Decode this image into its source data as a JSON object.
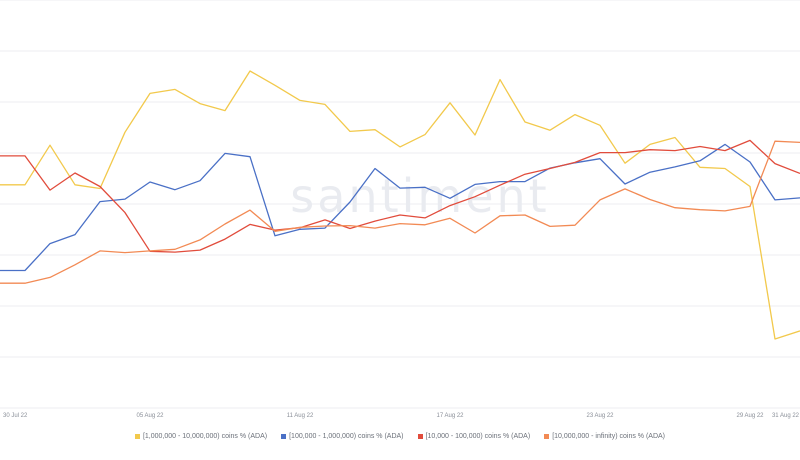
{
  "watermark": "santiment",
  "chart_data": {
    "type": "line",
    "x": [
      "30 Jul 22",
      "31 Jul 22",
      "01 Aug 22",
      "02 Aug 22",
      "03 Aug 22",
      "04 Aug 22",
      "05 Aug 22",
      "06 Aug 22",
      "07 Aug 22",
      "08 Aug 22",
      "09 Aug 22",
      "10 Aug 22",
      "11 Aug 22",
      "12 Aug 22",
      "13 Aug 22",
      "14 Aug 22",
      "15 Aug 22",
      "16 Aug 22",
      "17 Aug 22",
      "18 Aug 22",
      "19 Aug 22",
      "20 Aug 22",
      "21 Aug 22",
      "22 Aug 22",
      "23 Aug 22",
      "24 Aug 22",
      "25 Aug 22",
      "26 Aug 22",
      "27 Aug 22",
      "28 Aug 22",
      "29 Aug 22",
      "30 Aug 22",
      "31 Aug 22"
    ],
    "x_tick_labels": [
      "30 Jul 22",
      "05 Aug 22",
      "11 Aug 22",
      "17 Aug 22",
      "23 Aug 22",
      "29 Aug 22",
      "31 Aug 22"
    ],
    "ylim": [
      0,
      100
    ],
    "grid": true,
    "legend_position": "bottom",
    "series": [
      {
        "name": "[1,000,000 - 10,000,000) coins % (ADA)",
        "color": "#f2c94c",
        "values": [
          54.7,
          54.7,
          64.4,
          54.7,
          53.8,
          67.6,
          77.1,
          78.1,
          74.6,
          72.9,
          82.6,
          79.1,
          75.4,
          74.4,
          67.8,
          68.2,
          64.0,
          67.0,
          74.8,
          66.9,
          80.5,
          70.1,
          68.1,
          71.9,
          69.3,
          60.0,
          64.6,
          66.3,
          59.0,
          58.7,
          54.3,
          16.9,
          18.9
        ]
      },
      {
        "name": "[100,000 - 1,000,000) coins % (ADA)",
        "color": "#4a70c6",
        "values": [
          33.7,
          33.7,
          40.3,
          42.5,
          50.6,
          51.2,
          55.4,
          53.5,
          55.7,
          62.4,
          61.6,
          42.2,
          43.8,
          44.1,
          50.5,
          58.7,
          53.9,
          54.1,
          51.4,
          54.8,
          55.5,
          55.5,
          58.8,
          60.1,
          61.1,
          54.9,
          57.8,
          59.1,
          60.6,
          64.6,
          60.3,
          51.0,
          51.5
        ]
      },
      {
        "name": "[10,000 - 100,000) coins % (ADA)",
        "color": "#e14c3c",
        "values": [
          61.8,
          61.8,
          53.4,
          57.6,
          54.3,
          47.9,
          38.4,
          38.2,
          38.7,
          41.4,
          45.0,
          43.6,
          44.2,
          46.1,
          44.0,
          45.8,
          47.3,
          46.6,
          49.6,
          51.8,
          54.6,
          57.3,
          58.7,
          60.2,
          62.6,
          62.6,
          63.3,
          63.1,
          64.1,
          63.1,
          65.6,
          59.9,
          57.5
        ]
      },
      {
        "name": "[10,000,000 - infinity) coins % (ADA)",
        "color": "#f28a54",
        "values": [
          30.6,
          30.6,
          32.0,
          35.1,
          38.5,
          38.1,
          38.5,
          38.9,
          41.2,
          45.1,
          48.5,
          43.3,
          44.3,
          44.6,
          44.7,
          44.1,
          45.2,
          44.9,
          46.5,
          42.9,
          47.1,
          47.3,
          44.5,
          44.8,
          51.0,
          53.7,
          51.1,
          49.1,
          48.6,
          48.3,
          49.4,
          65.4,
          65.1
        ]
      }
    ]
  }
}
